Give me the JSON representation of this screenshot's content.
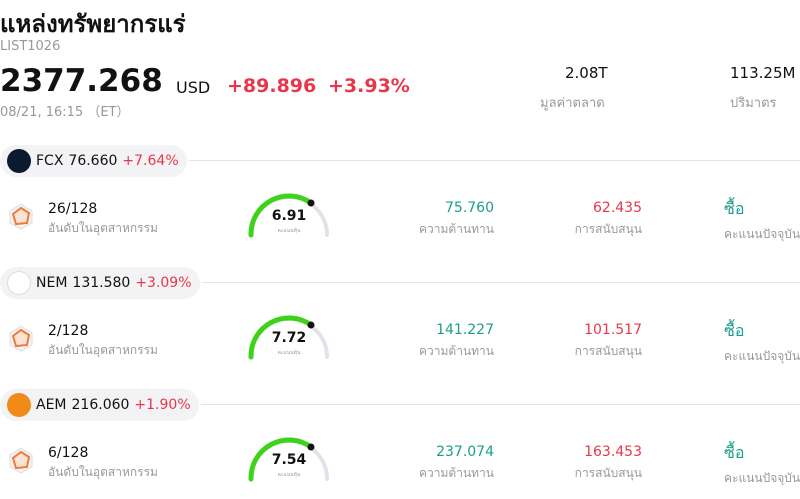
{
  "header": {
    "title": "แหล่งทรัพยากรแร่",
    "code": "LIST1026",
    "price": "2377.268",
    "currency": "USD",
    "change": "+89.896",
    "change_pct": "+3.93%",
    "date": "08/21, 16:15 （ET）",
    "market_cap": "2.08T",
    "market_cap_label": "มูลค่าตลาด",
    "volume": "113.25M",
    "volume_label": "ปริมาตร"
  },
  "stocks": [
    {
      "ticker": "FCX",
      "price": "76.660",
      "change_pct": "+7.64%",
      "rank": "26/128",
      "rank_label": "อันดับในอุตสาหกรรม",
      "score": "6.91",
      "score_label": "คะแนนหุ้น",
      "resistance": "75.760",
      "resistance_label": "ความต้านทาน",
      "support": "62.435",
      "support_label": "การสนับสนุน",
      "rating": "ซื้อ",
      "rating_label": "คะแนนปัจจุบัน"
    },
    {
      "ticker": "NEM",
      "price": "131.580",
      "change_pct": "+3.09%",
      "rank": "2/128",
      "rank_label": "อันดับในอุตสาหกรรม",
      "score": "7.72",
      "score_label": "คะแนนหุ้น",
      "resistance": "141.227",
      "resistance_label": "ความต้านทาน",
      "support": "101.517",
      "support_label": "การสนับสนุน",
      "rating": "ซื้อ",
      "rating_label": "คะแนนปัจจุบัน"
    },
    {
      "ticker": "AEM",
      "price": "216.060",
      "change_pct": "+1.90%",
      "rank": "6/128",
      "rank_label": "อันดับในอุตสาหกรรม",
      "score": "7.54",
      "score_label": "คะแนนหุ้น",
      "resistance": "237.074",
      "resistance_label": "ความต้านทาน",
      "support": "163.453",
      "support_label": "การสนับสนุน",
      "rating": "ซื้อ",
      "rating_label": "คะแนนปัจจุบัน"
    }
  ]
}
